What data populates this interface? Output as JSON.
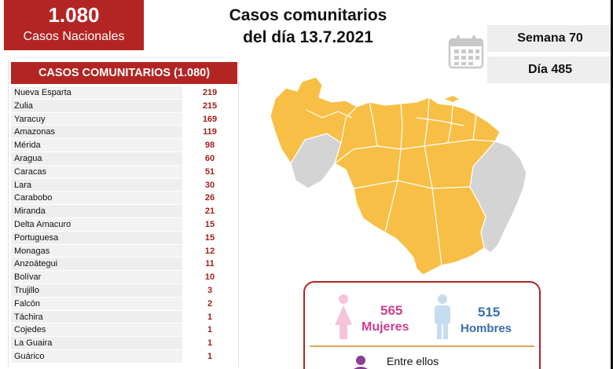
{
  "summary": {
    "total": "1.080",
    "label": "Casos Nacionales"
  },
  "title": {
    "line1": "Casos comunitarios",
    "line2": "del día 13.7.2021"
  },
  "info": {
    "week": "Semana 70",
    "day": "Día 485"
  },
  "table": {
    "header": "CASOS COMUNITARIOS (1.080)",
    "rows": [
      {
        "state": "Nueva Esparta",
        "cases": "219"
      },
      {
        "state": "Zulia",
        "cases": "215"
      },
      {
        "state": "Yaracuy",
        "cases": "169"
      },
      {
        "state": "Amazonas",
        "cases": "119"
      },
      {
        "state": "Mérida",
        "cases": "98"
      },
      {
        "state": "Aragua",
        "cases": "60"
      },
      {
        "state": "Caracas",
        "cases": "51"
      },
      {
        "state": "Lara",
        "cases": "30"
      },
      {
        "state": "Carabobo",
        "cases": "26"
      },
      {
        "state": "Miranda",
        "cases": "21"
      },
      {
        "state": "Delta Amacuro",
        "cases": "15"
      },
      {
        "state": "Portuguesa",
        "cases": "15"
      },
      {
        "state": "Monagas",
        "cases": "12"
      },
      {
        "state": "Anzoátegui",
        "cases": "11"
      },
      {
        "state": "Bolívar",
        "cases": "10"
      },
      {
        "state": "Trujillo",
        "cases": "3"
      },
      {
        "state": "Falcón",
        "cases": "2"
      },
      {
        "state": "Táchira",
        "cases": "1"
      },
      {
        "state": "Cojedes",
        "cases": "1"
      },
      {
        "state": "La Guaira",
        "cases": "1"
      },
      {
        "state": "Guárico",
        "cases": "1"
      }
    ]
  },
  "gender": {
    "female_count": "565",
    "female_label": "Mujeres",
    "male_count": "515",
    "male_label": "Hombres",
    "note": "Entre ellos"
  },
  "colors": {
    "brand_red": "#b32523",
    "map_affected": "#f7bf45",
    "map_unaffected": "#d4d4d4",
    "female": "#cc3f8f",
    "male": "#3a6eb0"
  },
  "icons": [
    "calendar-icon",
    "female-icon",
    "male-icon",
    "person-icon"
  ]
}
